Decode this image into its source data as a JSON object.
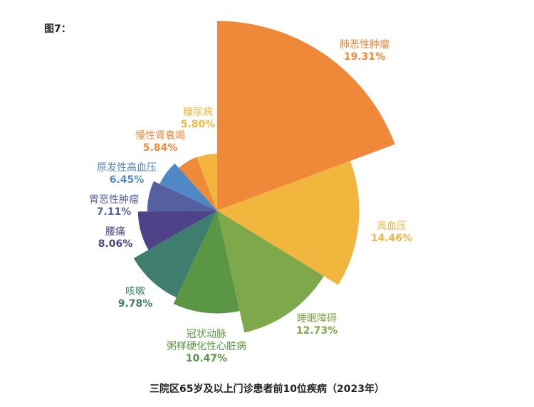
{
  "figure_label": "图7：",
  "chart_data": {
    "type": "pie",
    "variant": "rose (angle and radius proportional to value)",
    "title": "三院区65岁及以上门诊患者前10位疾病（2023年）",
    "unit": "%",
    "slices": [
      {
        "name": "肺恶性肿瘤",
        "value": 19.31,
        "label": "19.31%",
        "color": "#F0883A"
      },
      {
        "name": "高血压",
        "value": 14.46,
        "label": "14.46%",
        "color": "#F2B63F"
      },
      {
        "name": "睡眠障碍",
        "value": 12.73,
        "label": "12.73%",
        "color": "#7FA84A"
      },
      {
        "name": "冠状动脉\n粥样硬化性心脏病",
        "value": 10.47,
        "label": "10.47%",
        "color": "#5A9644"
      },
      {
        "name": "咳嗽",
        "value": 9.78,
        "label": "9.78%",
        "color": "#3F7D6E"
      },
      {
        "name": "腰痛",
        "value": 8.06,
        "label": "8.06%",
        "color": "#4E4388"
      },
      {
        "name": "胃恶性肿瘤",
        "value": 7.11,
        "label": "7.11%",
        "color": "#5560A0"
      },
      {
        "name": "原发性高血压",
        "value": 6.45,
        "label": "6.45%",
        "color": "#4F88C4"
      },
      {
        "name": "慢性肾衰竭",
        "value": 5.84,
        "label": "5.84%",
        "color": "#EF8A3A"
      },
      {
        "name": "糖尿病",
        "value": 5.8,
        "label": "5.80%",
        "color": "#F2B63F"
      }
    ]
  }
}
